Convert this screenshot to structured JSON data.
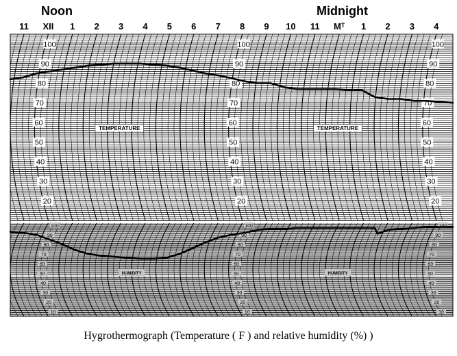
{
  "header": {
    "noon_label": "Noon",
    "midnight_label": "Midnight"
  },
  "caption": "Hygrothermograph (Temperature ( F ) and relative humidity (%) )",
  "chart_data": {
    "type": "line",
    "hour_labels": [
      "11",
      "XII",
      "1",
      "2",
      "3",
      "4",
      "5",
      "6",
      "7",
      "8",
      "9",
      "10",
      "11",
      "Mᵀ",
      "1",
      "2",
      "3",
      "4"
    ],
    "panels": [
      {
        "name": "temperature",
        "panel_label": "TEMPERATURE",
        "ylim": [
          10,
          105
        ],
        "scale_labels": [
          "100",
          "90",
          "80",
          "70",
          "60",
          "50",
          "40",
          "30",
          "20"
        ],
        "scale_label_columns": [
          1,
          9,
          17
        ],
        "label_columns": [
          4.5,
          13.5
        ],
        "series": [
          {
            "hours": [
              0,
              0.5,
              1,
              1.5,
              2,
              2.5,
              3,
              3.5,
              4,
              4.5,
              5,
              5.5,
              6,
              6.5,
              7,
              7.5,
              8,
              8.5,
              9,
              9.5,
              10,
              10.5,
              11,
              11.5,
              12,
              12.5,
              13,
              13.5,
              14,
              14.5,
              15,
              15.5,
              16,
              16.5,
              17
            ],
            "values": [
              82,
              83,
              85,
              86,
              87,
              88,
              89,
              89.5,
              90,
              90,
              90,
              89.5,
              89,
              88,
              86.5,
              85,
              84,
              82.5,
              81,
              80,
              80,
              78,
              77,
              77,
              77,
              77,
              76.5,
              76.5,
              73,
              72,
              72,
              71,
              71,
              70.5,
              70
            ]
          }
        ]
      },
      {
        "name": "humidity",
        "panel_label": "HUMIDITY",
        "ylim": [
          5,
          102
        ],
        "scale_labels": [
          "100",
          "90",
          "80",
          "70",
          "60",
          "50",
          "40",
          "30",
          "20",
          "10"
        ],
        "scale_label_columns": [
          1.2,
          9.2,
          17.2
        ],
        "label_columns": [
          5,
          13.5
        ],
        "series": [
          {
            "hours": [
              0,
              0.5,
              1,
              1.5,
              2,
              2.5,
              3,
              3.5,
              4,
              4.5,
              5,
              5.5,
              6,
              6.5,
              7,
              7.5,
              8,
              8.5,
              9,
              9.5,
              10,
              10.5,
              11,
              11.5,
              12,
              12.5,
              13,
              13.5,
              14,
              14.1,
              14.5,
              15,
              15.5,
              16,
              16.5,
              17
            ],
            "values": [
              93,
              92,
              90,
              85,
              80,
              74,
              70,
              68,
              67,
              66,
              65,
              65,
              66,
              70,
              76,
              82,
              87,
              90,
              92,
              95,
              96,
              96,
              97,
              97,
              97,
              97,
              97,
              97,
              97,
              91,
              95,
              96,
              97,
              98,
              98,
              98
            ]
          }
        ]
      }
    ]
  }
}
